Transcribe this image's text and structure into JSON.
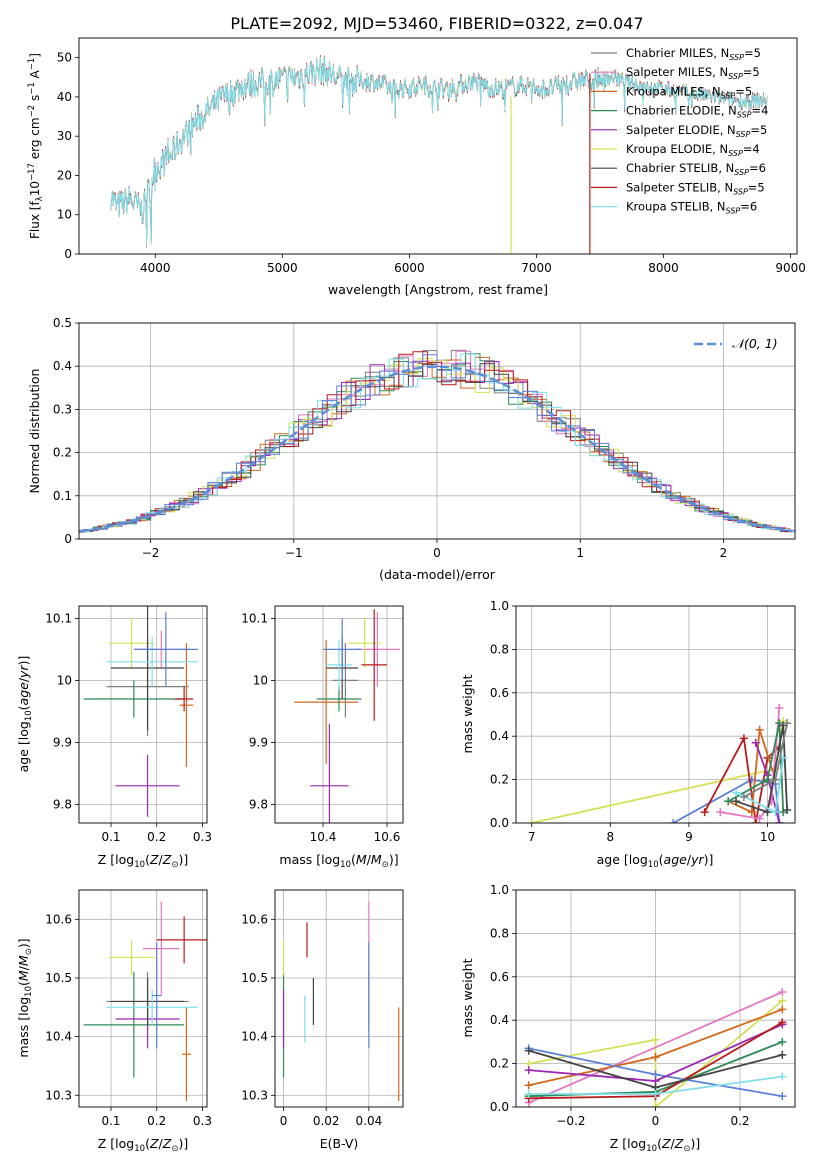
{
  "figure_title": "PLATE=2092, MJD=53460, FIBERID=0322, z=0.047",
  "colors": {
    "Chabrier MILES": "#7f7f7f",
    "Salpeter MILES": "#e377c2",
    "Kroupa MILES": "#d2691e",
    "Chabrier ELODIE": "#2e8b57",
    "Salpeter ELODIE": "#9c27b0",
    "Kroupa ELODIE": "#d4e157",
    "Chabrier STELIB": "#444444",
    "Salpeter STELIB": "#b71c1c",
    "Kroupa STELIB": "#80deea",
    "extra_blue": "#5b7fd8",
    "normal_curve": "#5b8fd8",
    "spec_main": "#6ed3d8",
    "spec_grey": "#555555"
  },
  "chart_data": [
    {
      "id": "spectrum",
      "type": "line",
      "title": "PLATE=2092, MJD=53460, FIBERID=0322, z=0.047",
      "xlabel": "wavelength [Angstrom, rest frame]",
      "ylabel": "Flux [f_λ 10^-17 erg cm^-2 s^-1 A^-1]",
      "xlim": [
        3400,
        9050
      ],
      "ylim": [
        0,
        55
      ],
      "xticks": [
        4000,
        5000,
        6000,
        7000,
        8000,
        9000
      ],
      "yticks": [
        0,
        10,
        20,
        30,
        40,
        50
      ],
      "legend_position": "top-right",
      "legend": [
        {
          "label": "Chabrier MILES, N",
          "sub": "SSP",
          "suffix": "=5"
        },
        {
          "label": "Salpeter MILES, N",
          "sub": "SSP",
          "suffix": "=5"
        },
        {
          "label": "Kroupa MILES, N",
          "sub": "SSP",
          "suffix": "=5"
        },
        {
          "label": "Chabrier ELODIE, N",
          "sub": "SSP",
          "suffix": "=4"
        },
        {
          "label": "Salpeter ELODIE, N",
          "sub": "SSP",
          "suffix": "=5"
        },
        {
          "label": "Kroupa ELODIE, N",
          "sub": "SSP",
          "suffix": "=4"
        },
        {
          "label": "Chabrier STELIB, N",
          "sub": "SSP",
          "suffix": "=6"
        },
        {
          "label": "Salpeter STELIB, N",
          "sub": "SSP",
          "suffix": "=5"
        },
        {
          "label": "Kroupa STELIB, N",
          "sub": "SSP",
          "suffix": "=6"
        }
      ],
      "continuum_points": [
        [
          3650,
          15
        ],
        [
          3700,
          12
        ],
        [
          3800,
          14
        ],
        [
          3900,
          11
        ],
        [
          4000,
          22
        ],
        [
          4100,
          24
        ],
        [
          4200,
          29
        ],
        [
          4300,
          33
        ],
        [
          4400,
          36
        ],
        [
          4500,
          39
        ],
        [
          4700,
          43
        ],
        [
          4900,
          44
        ],
        [
          5100,
          45
        ],
        [
          5300,
          47
        ],
        [
          5500,
          44
        ],
        [
          5700,
          44
        ],
        [
          5900,
          42
        ],
        [
          6100,
          43
        ],
        [
          6300,
          42
        ],
        [
          6500,
          44
        ],
        [
          6700,
          42
        ],
        [
          6900,
          43
        ],
        [
          7100,
          42
        ],
        [
          7300,
          44
        ],
        [
          7600,
          45
        ],
        [
          7800,
          43
        ],
        [
          8000,
          42
        ],
        [
          8200,
          41
        ],
        [
          8400,
          40
        ],
        [
          8600,
          39
        ],
        [
          8800,
          39
        ]
      ],
      "cutoff_lines": [
        {
          "series": "Kroupa ELODIE",
          "x": 6800,
          "y_from": 40,
          "y_to": 0
        },
        {
          "series": "Salpeter STELIB",
          "x": 7420,
          "y_from": 46,
          "y_to": 0
        }
      ]
    },
    {
      "id": "residual-histogram",
      "type": "histogram",
      "xlabel": "(data-model)/error",
      "ylabel": "Normed distribution",
      "xlim": [
        -2.5,
        2.5
      ],
      "ylim": [
        0,
        0.5
      ],
      "xticks": [
        -2,
        -1,
        0,
        1,
        2
      ],
      "yticks": [
        0.0,
        0.1,
        0.2,
        0.3,
        0.4,
        0.5
      ],
      "grid": true,
      "legend_position": "top-right",
      "legend_label": "𝒩(0, 1)",
      "bin_width": 0.1,
      "normal_curve": {
        "mean": 0,
        "sigma": 1
      }
    },
    {
      "id": "age-vs-Z",
      "type": "errorbar",
      "xlabel": "Z [log10(Z/Z⊙)]",
      "ylabel": "age  [log10(age/yr)]",
      "xlim": [
        0.03,
        0.31
      ],
      "ylim": [
        9.77,
        10.12
      ],
      "xticks": [
        0.1,
        0.2,
        0.3
      ],
      "yticks": [
        9.8,
        9.9,
        10.0,
        10.1
      ],
      "grid": true,
      "points": [
        {
          "series": "Chabrier MILES",
          "x": 0.18,
          "xerr": 0.09,
          "y": 9.99,
          "yerr": 0.08
        },
        {
          "series": "Salpeter MILES",
          "x": 0.21,
          "xerr": 0.06,
          "y": 10.05,
          "yerr": 0.03
        },
        {
          "series": "Kroupa MILES",
          "x": 0.265,
          "xerr": 0.015,
          "y": 9.96,
          "yerr": 0.1
        },
        {
          "series": "Chabrier ELODIE",
          "x": 0.15,
          "xerr": 0.11,
          "y": 9.97,
          "yerr": 0.03
        },
        {
          "series": "Salpeter ELODIE",
          "x": 0.18,
          "xerr": 0.07,
          "y": 9.83,
          "yerr": 0.05
        },
        {
          "series": "Kroupa ELODIE",
          "x": 0.145,
          "xerr": 0.05,
          "y": 10.06,
          "yerr": 0.04
        },
        {
          "series": "Chabrier STELIB",
          "x": 0.18,
          "xerr": 0.08,
          "y": 10.02,
          "yerr": 0.1
        },
        {
          "series": "Salpeter STELIB",
          "x": 0.26,
          "xerr": 0.02,
          "y": 9.97,
          "yerr": 0.02
        },
        {
          "series": "Kroupa STELIB",
          "x": 0.19,
          "xerr": 0.1,
          "y": 10.03,
          "yerr": 0.04
        },
        {
          "series": "extra_blue",
          "x": 0.22,
          "xerr": 0.07,
          "y": 10.05,
          "yerr": 0.06
        }
      ]
    },
    {
      "id": "age-vs-mass",
      "type": "errorbar",
      "xlabel": "mass [log10(M/M⊙)]",
      "ylabel": "",
      "xlim": [
        10.25,
        10.65
      ],
      "ylim": [
        9.77,
        10.12
      ],
      "xticks": [
        10.4,
        10.6
      ],
      "yticks": [
        9.8,
        9.9,
        10.0,
        10.1
      ],
      "grid": true,
      "points": [
        {
          "series": "Chabrier MILES",
          "x": 10.47,
          "xerr": 0.04,
          "y": 10.0,
          "yerr": 0.06
        },
        {
          "series": "Salpeter MILES",
          "x": 10.57,
          "xerr": 0.07,
          "y": 10.05,
          "yerr": 0.06
        },
        {
          "series": "Kroupa MILES",
          "x": 10.41,
          "xerr": 0.1,
          "y": 9.965,
          "yerr": 0.1
        },
        {
          "series": "Chabrier ELODIE",
          "x": 10.45,
          "xerr": 0.07,
          "y": 9.97,
          "yerr": 0.02
        },
        {
          "series": "Salpeter ELODIE",
          "x": 10.42,
          "xerr": 0.06,
          "y": 9.83,
          "yerr": 0.1
        },
        {
          "series": "Kroupa ELODIE",
          "x": 10.53,
          "xerr": 0.05,
          "y": 10.06,
          "yerr": 0.04
        },
        {
          "series": "Chabrier STELIB",
          "x": 10.46,
          "xerr": 0.05,
          "y": 10.02,
          "yerr": 0.05
        },
        {
          "series": "Salpeter STELIB",
          "x": 10.56,
          "xerr": 0.04,
          "y": 10.025,
          "yerr": 0.09
        },
        {
          "series": "Kroupa STELIB",
          "x": 10.45,
          "xerr": 0.04,
          "y": 10.025,
          "yerr": 0.04
        },
        {
          "series": "extra_blue",
          "x": 10.46,
          "xerr": 0.06,
          "y": 10.05,
          "yerr": 0.05
        }
      ]
    },
    {
      "id": "mass-weight-vs-age",
      "type": "line",
      "xlabel": "age  [log10(age/yr)]",
      "ylabel": "mass weight",
      "xlim": [
        6.8,
        10.35
      ],
      "ylim": [
        0,
        1.0
      ],
      "xticks": [
        7,
        8,
        9,
        10
      ],
      "yticks": [
        0.0,
        0.2,
        0.4,
        0.6,
        0.8,
        1.0
      ],
      "grid": true,
      "series": [
        {
          "name": "Kroupa ELODIE",
          "points": [
            [
              7.0,
              0.0
            ],
            [
              10.1,
              0.25
            ],
            [
              10.2,
              0.47
            ]
          ]
        },
        {
          "name": "extra_blue",
          "points": [
            [
              8.8,
              0.0
            ],
            [
              9.8,
              0.2
            ],
            [
              10.1,
              0.18
            ],
            [
              10.15,
              0.0
            ]
          ]
        },
        {
          "name": "Salpeter STELIB",
          "points": [
            [
              9.2,
              0.05
            ],
            [
              9.7,
              0.39
            ],
            [
              9.85,
              0.0
            ],
            [
              10.0,
              0.3
            ],
            [
              10.15,
              0.35
            ]
          ]
        },
        {
          "name": "Kroupa MILES",
          "points": [
            [
              9.5,
              0.1
            ],
            [
              9.8,
              0.05
            ],
            [
              9.9,
              0.43
            ],
            [
              10.1,
              0.2
            ]
          ]
        },
        {
          "name": "Salpeter ELODIE",
          "points": [
            [
              9.85,
              0.37
            ],
            [
              10.0,
              0.22
            ],
            [
              10.15,
              0.0
            ]
          ]
        },
        {
          "name": "Salpeter MILES",
          "points": [
            [
              9.4,
              0.05
            ],
            [
              9.9,
              0.02
            ],
            [
              10.05,
              0.1
            ],
            [
              10.15,
              0.53
            ]
          ]
        },
        {
          "name": "Chabrier ELODIE",
          "points": [
            [
              9.5,
              0.1
            ],
            [
              10.0,
              0.2
            ],
            [
              10.15,
              0.46
            ],
            [
              10.2,
              0.05
            ]
          ]
        },
        {
          "name": "Chabrier STELIB",
          "points": [
            [
              9.6,
              0.1
            ],
            [
              10.0,
              0.05
            ],
            [
              10.2,
              0.45
            ],
            [
              10.25,
              0.06
            ]
          ]
        },
        {
          "name": "Kroupa STELIB",
          "points": [
            [
              9.6,
              0.14
            ],
            [
              10.1,
              0.05
            ],
            [
              10.2,
              0.3
            ]
          ]
        },
        {
          "name": "Chabrier MILES",
          "points": [
            [
              9.7,
              0.12
            ],
            [
              10.1,
              0.2
            ],
            [
              10.25,
              0.46
            ]
          ]
        }
      ]
    },
    {
      "id": "mass-vs-Z",
      "type": "errorbar",
      "xlabel": "Z [log10(Z/Z⊙)]",
      "ylabel": "mass [log10(M/M⊙)]",
      "xlim": [
        0.03,
        0.31
      ],
      "ylim": [
        10.28,
        10.65
      ],
      "xticks": [
        0.1,
        0.2,
        0.3
      ],
      "yticks": [
        10.3,
        10.4,
        10.5,
        10.6
      ],
      "grid": true,
      "points": [
        {
          "series": "Chabrier MILES",
          "x": 0.18,
          "xerr": 0.09,
          "y": 10.46,
          "yerr": 0.05
        },
        {
          "series": "Salpeter MILES",
          "x": 0.21,
          "xerr": 0.04,
          "y": 10.55,
          "yerr": 0.08
        },
        {
          "series": "Kroupa MILES",
          "x": 0.265,
          "xerr": 0.01,
          "y": 10.37,
          "yerr": 0.08
        },
        {
          "series": "Chabrier ELODIE",
          "x": 0.15,
          "xerr": 0.11,
          "y": 10.42,
          "yerr": 0.09
        },
        {
          "series": "Salpeter ELODIE",
          "x": 0.18,
          "xerr": 0.07,
          "y": 10.43,
          "yerr": 0.05
        },
        {
          "series": "Kroupa ELODIE",
          "x": 0.145,
          "xerr": 0.05,
          "y": 10.535,
          "yerr": 0.03
        },
        {
          "series": "Chabrier STELIB",
          "x": 0.18,
          "xerr": 0.08,
          "y": 10.46,
          "yerr": 0.04
        },
        {
          "series": "Salpeter STELIB",
          "x": 0.26,
          "xerr": 0.06,
          "y": 10.565,
          "yerr": 0.04
        },
        {
          "series": "Kroupa STELIB",
          "x": 0.19,
          "xerr": 0.1,
          "y": 10.45,
          "yerr": 0.03
        },
        {
          "series": "extra_blue",
          "x": 0.2,
          "xerr": 0.01,
          "y": 10.47,
          "yerr": 0.09
        }
      ]
    },
    {
      "id": "mass-vs-EBV",
      "type": "errorbar",
      "xlabel": "E(B-V)",
      "ylabel": "",
      "xlim": [
        -0.004,
        0.056
      ],
      "ylim": [
        10.28,
        10.65
      ],
      "xticks": [
        0.0,
        0.02,
        0.04
      ],
      "yticks": [
        10.3,
        10.4,
        10.5,
        10.6
      ],
      "grid": true,
      "points": [
        {
          "series": "Chabrier MILES",
          "x": 0.04,
          "xerr": 0,
          "y": 10.46,
          "yerr": 0.05
        },
        {
          "series": "Salpeter MILES",
          "x": 0.04,
          "xerr": 0,
          "y": 10.55,
          "yerr": 0.08
        },
        {
          "series": "Kroupa MILES",
          "x": 0.054,
          "xerr": 0,
          "y": 10.37,
          "yerr": 0.08
        },
        {
          "series": "Chabrier ELODIE",
          "x": 0.0,
          "xerr": 0,
          "y": 10.42,
          "yerr": 0.09
        },
        {
          "series": "Salpeter ELODIE",
          "x": 0.0,
          "xerr": 0,
          "y": 10.43,
          "yerr": 0.05
        },
        {
          "series": "Kroupa ELODIE",
          "x": 0.0,
          "xerr": 0,
          "y": 10.535,
          "yerr": 0.03
        },
        {
          "series": "Chabrier STELIB",
          "x": 0.014,
          "xerr": 0,
          "y": 10.46,
          "yerr": 0.04
        },
        {
          "series": "Salpeter STELIB",
          "x": 0.011,
          "xerr": 0,
          "y": 10.565,
          "yerr": 0.03
        },
        {
          "series": "Kroupa STELIB",
          "x": 0.01,
          "xerr": 0,
          "y": 10.43,
          "yerr": 0.04
        },
        {
          "series": "extra_blue",
          "x": 0.04,
          "xerr": 0,
          "y": 10.47,
          "yerr": 0.09
        }
      ]
    },
    {
      "id": "mass-weight-vs-Z",
      "type": "line",
      "xlabel": "Z [log10(Z/Z⊙)]",
      "ylabel": "mass weight",
      "xlim": [
        -0.33,
        0.33
      ],
      "ylim": [
        0,
        1.0
      ],
      "xticks": [
        -0.2,
        0.0,
        0.2
      ],
      "yticks": [
        0.0,
        0.2,
        0.4,
        0.6,
        0.8,
        1.0
      ],
      "grid": true,
      "series": [
        {
          "name": "Kroupa ELODIE",
          "points": [
            [
              -0.3,
              0.2
            ],
            [
              0.0,
              0.31
            ],
            [
              0.0,
              0.0
            ],
            [
              0.3,
              0.49
            ]
          ]
        },
        {
          "name": "Salpeter MILES",
          "points": [
            [
              -0.3,
              0.02
            ],
            [
              0.3,
              0.53
            ]
          ]
        },
        {
          "name": "Kroupa MILES",
          "points": [
            [
              -0.3,
              0.1
            ],
            [
              0.0,
              0.23
            ],
            [
              0.3,
              0.45
            ]
          ]
        },
        {
          "name": "extra_blue",
          "points": [
            [
              -0.3,
              0.27
            ],
            [
              0.0,
              0.15
            ],
            [
              0.3,
              0.05
            ]
          ]
        },
        {
          "name": "Chabrier ELODIE",
          "points": [
            [
              -0.3,
              0.05
            ],
            [
              0.0,
              0.07
            ],
            [
              0.3,
              0.3
            ]
          ]
        },
        {
          "name": "Salpeter ELODIE",
          "points": [
            [
              -0.3,
              0.17
            ],
            [
              0.0,
              0.12
            ],
            [
              0.3,
              0.38
            ]
          ]
        },
        {
          "name": "Salpeter STELIB",
          "points": [
            [
              -0.3,
              0.04
            ],
            [
              0.0,
              0.05
            ],
            [
              0.3,
              0.39
            ]
          ]
        },
        {
          "name": "Chabrier STELIB",
          "points": [
            [
              -0.3,
              0.26
            ],
            [
              0.0,
              0.09
            ],
            [
              0.3,
              0.24
            ]
          ]
        },
        {
          "name": "Kroupa STELIB",
          "points": [
            [
              -0.3,
              0.06
            ],
            [
              0.0,
              0.06
            ],
            [
              0.3,
              0.14
            ]
          ]
        }
      ]
    }
  ]
}
